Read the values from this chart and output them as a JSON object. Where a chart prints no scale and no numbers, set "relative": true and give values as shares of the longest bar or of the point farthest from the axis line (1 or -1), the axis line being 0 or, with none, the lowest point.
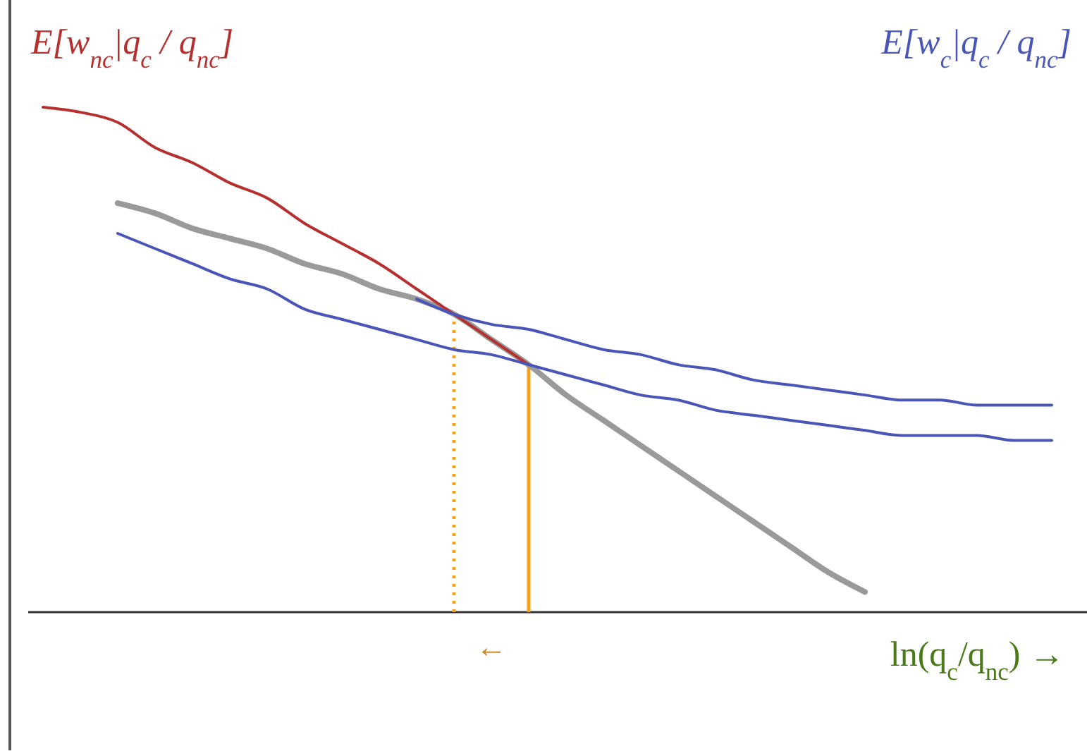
{
  "chart_data": {
    "type": "line",
    "relative": true,
    "ylabel": "E[w$_{nc}$|q$_{c}$ / q$_{nc}$]",
    "y2label": "E[w$_{c}$|q$_{c}$ / q$_{nc}$]",
    "xlabel": "ln(q$_{c}$/q$_{nc}$) →",
    "annotations": [
      "←"
    ],
    "marker": "none",
    "categories": [
      null,
      null,
      null,
      null,
      null,
      null,
      null,
      null,
      null,
      null,
      null,
      null,
      null,
      null,
      null,
      null,
      null,
      null,
      null,
      null,
      null,
      null,
      null,
      null,
      null,
      null,
      null,
      null,
      null
    ],
    "series": [
      {
        "color": "#9a9a9a",
        "values": [
          null,
          null,
          null,
          0.81,
          0.79,
          0.76,
          0.74,
          0.72,
          0.69,
          0.67,
          0.64,
          0.62,
          0.59,
          0.54,
          0.49,
          0.43,
          0.38,
          0.33,
          0.28,
          0.23,
          0.18,
          0.13,
          0.08,
          0.04,
          null,
          null,
          null,
          null,
          null
        ]
      },
      {
        "color": "#b5302f",
        "values": [
          null,
          1.0,
          0.99,
          0.97,
          0.92,
          0.89,
          0.85,
          0.82,
          0.77,
          0.73,
          0.69,
          0.64,
          0.59,
          0.54,
          0.49,
          null,
          null,
          null,
          null,
          null,
          null,
          null,
          null,
          null,
          null,
          null,
          null,
          null,
          null
        ]
      },
      {
        "color": "#4a55b8",
        "values": [
          null,
          null,
          null,
          null,
          null,
          null,
          null,
          null,
          null,
          null,
          null,
          0.62,
          0.59,
          0.57,
          0.56,
          0.54,
          0.52,
          0.51,
          0.49,
          0.48,
          0.46,
          0.45,
          0.44,
          0.43,
          0.42,
          0.42,
          0.41,
          0.41,
          0.41
        ]
      },
      {
        "color": "#4a55b8",
        "values": [
          null,
          null,
          null,
          0.75,
          0.72,
          0.69,
          0.66,
          0.64,
          0.6,
          0.58,
          0.56,
          0.54,
          0.52,
          0.51,
          0.49,
          0.47,
          0.45,
          0.43,
          0.42,
          0.4,
          0.39,
          0.38,
          0.37,
          0.36,
          0.35,
          0.35,
          0.35,
          0.34,
          0.34
        ]
      }
    ]
  }
}
